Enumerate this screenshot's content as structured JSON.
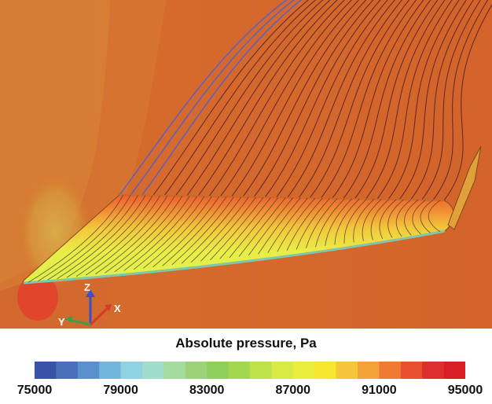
{
  "colorbar": {
    "title": "Absolute pressure, Pa",
    "min": 75000,
    "max": 95000,
    "tick_labels": [
      "75000",
      "79000",
      "83000",
      "87000",
      "91000",
      "95000"
    ],
    "colors": [
      "#3a52a8",
      "#4a6fba",
      "#5a90cc",
      "#72b6dc",
      "#8fd3e2",
      "#9fdcc9",
      "#a6dba0",
      "#9dd27a",
      "#8fcf5a",
      "#a3d84e",
      "#bde24a",
      "#d7ea46",
      "#ecee3e",
      "#f6e82e",
      "#f7c53a",
      "#f4a23a",
      "#ef7a34",
      "#e8502f",
      "#dd2f2d",
      "#d81f27"
    ]
  },
  "axes_triad": {
    "x_label": "X",
    "y_label": "Y",
    "z_label": "Z"
  },
  "colors": {
    "background": "#d4662a",
    "streamline": "#5b2630",
    "streamline_outer": "#5a5ec8",
    "wing_high": "#ef5a2a",
    "wing_mid": "#f2c23a",
    "wing_low": "#e8ef4a"
  }
}
